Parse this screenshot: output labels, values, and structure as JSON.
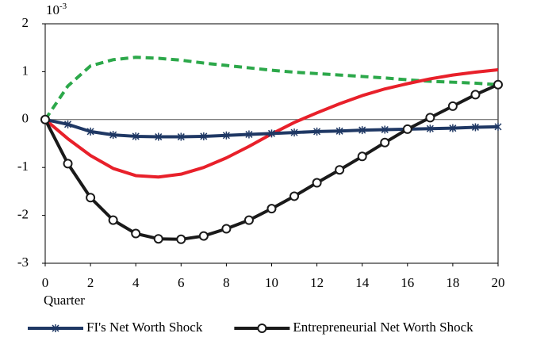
{
  "chart_data": {
    "type": "line",
    "axis_multiplier": {
      "base": "10",
      "exponent": "-3"
    },
    "xlabel": "Quarter",
    "x": [
      0,
      1,
      2,
      3,
      4,
      5,
      6,
      7,
      8,
      9,
      10,
      11,
      12,
      13,
      14,
      15,
      16,
      17,
      18,
      19,
      20
    ],
    "xlim": [
      0,
      20
    ],
    "xticks": [
      0,
      2,
      4,
      6,
      8,
      10,
      12,
      14,
      16,
      18,
      20
    ],
    "ylim": [
      -3,
      2
    ],
    "yticks": [
      -3,
      -2,
      -1,
      0,
      1,
      2
    ],
    "zero_line": true,
    "series": [
      {
        "name": "FI's Net Worth Shock",
        "color": "#1f3864",
        "marker": "x",
        "style": "solid",
        "values": [
          0,
          -0.1,
          -0.25,
          -0.32,
          -0.35,
          -0.36,
          -0.36,
          -0.35,
          -0.33,
          -0.31,
          -0.29,
          -0.27,
          -0.25,
          -0.24,
          -0.22,
          -0.21,
          -0.2,
          -0.19,
          -0.18,
          -0.16,
          -0.15
        ]
      },
      {
        "name": "Entrepreneurial Net Worth Shock",
        "color": "#1a1a1a",
        "marker": "circle",
        "style": "solid",
        "values": [
          0,
          -0.92,
          -1.63,
          -2.1,
          -2.38,
          -2.49,
          -2.5,
          -2.43,
          -2.28,
          -2.1,
          -1.86,
          -1.6,
          -1.32,
          -1.05,
          -0.77,
          -0.48,
          -0.2,
          0.04,
          0.28,
          0.52,
          0.73
        ]
      },
      {
        "color": "#e8202a",
        "marker": "none",
        "style": "solid",
        "values": [
          0,
          -0.4,
          -0.75,
          -1.02,
          -1.17,
          -1.2,
          -1.14,
          -1.0,
          -0.8,
          -0.56,
          -0.3,
          -0.06,
          0.14,
          0.33,
          0.5,
          0.64,
          0.75,
          0.85,
          0.93,
          0.99,
          1.04
        ]
      },
      {
        "color": "#2ca84a",
        "marker": "none",
        "style": "dashed",
        "values": [
          0,
          0.7,
          1.12,
          1.25,
          1.3,
          1.28,
          1.24,
          1.18,
          1.13,
          1.08,
          1.03,
          0.99,
          0.96,
          0.93,
          0.9,
          0.87,
          0.83,
          0.8,
          0.78,
          0.76,
          0.73
        ]
      }
    ]
  }
}
